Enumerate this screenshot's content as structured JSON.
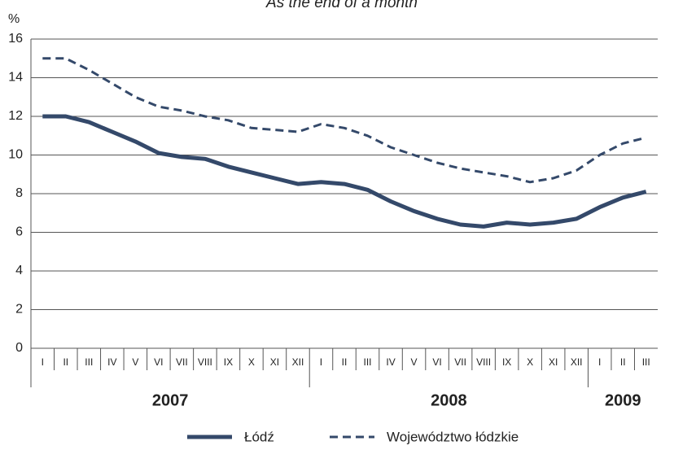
{
  "chart_data": {
    "type": "line",
    "title": "As the end of a month",
    "y_label": "%",
    "categories": [
      "I",
      "II",
      "III",
      "IV",
      "V",
      "VI",
      "VII",
      "VIII",
      "IX",
      "X",
      "XI",
      "XII",
      "I",
      "II",
      "III",
      "IV",
      "V",
      "VI",
      "VII",
      "VIII",
      "IX",
      "X",
      "XI",
      "XII",
      "I",
      "II",
      "III"
    ],
    "x_groups": [
      "2007",
      "2008",
      "2009"
    ],
    "series": [
      {
        "name": "Łódź",
        "color": "#34496a",
        "dashed": false,
        "values": [
          12.0,
          12.0,
          11.7,
          11.2,
          10.7,
          10.1,
          9.9,
          9.8,
          9.4,
          9.1,
          8.8,
          8.5,
          8.6,
          8.5,
          8.2,
          7.6,
          7.1,
          6.7,
          6.4,
          6.3,
          6.5,
          6.4,
          6.5,
          6.7,
          7.3,
          7.8,
          8.1
        ]
      },
      {
        "name": "Województwo łódzkie",
        "color": "#34496a",
        "dashed": true,
        "values": [
          15.0,
          15.0,
          14.4,
          13.7,
          13.0,
          12.5,
          12.3,
          12.0,
          11.8,
          11.4,
          11.3,
          11.2,
          11.6,
          11.4,
          11.0,
          10.4,
          10.0,
          9.6,
          9.3,
          9.1,
          8.9,
          8.6,
          8.8,
          9.2,
          10.0,
          10.6,
          10.9
        ]
      }
    ],
    "ylim": [
      0,
      16
    ],
    "yticks": [
      0,
      2,
      4,
      6,
      8,
      10,
      12,
      14,
      16
    ],
    "grid": true
  }
}
